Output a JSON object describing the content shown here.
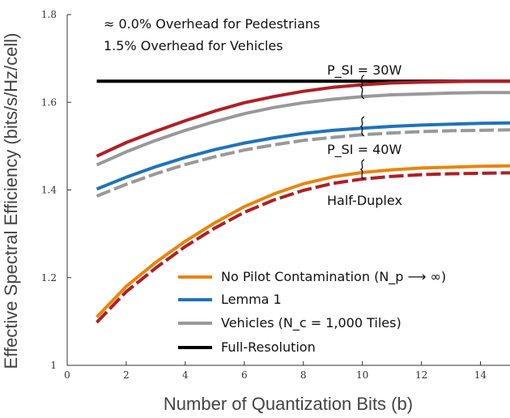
{
  "chart_data": {
    "type": "line",
    "xlabel": "Number of Quantization Bits (b)",
    "ylabel": "Effective Spectral Efficiency (bits/s/Hz/cell)",
    "xlim": [
      0,
      15
    ],
    "ylim": [
      1.0,
      1.8
    ],
    "xticks": [
      0,
      2,
      4,
      6,
      8,
      10,
      12,
      14
    ],
    "yticks": [
      1.0,
      1.2,
      1.4,
      1.6,
      1.8
    ],
    "ytick_labels": [
      "1",
      "1.2",
      "1.4",
      "1.6",
      "1.8"
    ],
    "annotations": {
      "overhead_pedestrians": "≈ 0.0% Overhead for Pedestrians",
      "overhead_vehicles": "1.5% Overhead for Vehicles",
      "psi_30": "P_SI = 30W",
      "psi_40": "P_SI = 40W",
      "half_duplex": "Half-Duplex"
    },
    "legend": [
      {
        "label": "No Pilot Contamination (N_p ⟶ ∞)",
        "color": "#e8860c"
      },
      {
        "label": "Lemma 1",
        "color": "#1f74b9"
      },
      {
        "label": "Vehicles (N_c = 1,000 Tiles)",
        "color": "#999999"
      },
      {
        "label": "Full-Resolution",
        "color": "#000000"
      }
    ],
    "series": [
      {
        "name": "Full-Resolution",
        "color": "#000000",
        "dash": false,
        "x": [
          1,
          15
        ],
        "y": [
          1.648,
          1.648
        ]
      },
      {
        "name": "P_SI=30W No Pilot Contamination",
        "color": "#b01f24",
        "dash": false,
        "x": [
          1,
          2,
          3,
          4,
          5,
          6,
          7,
          8,
          9,
          10,
          11,
          12,
          13,
          14,
          15
        ],
        "y": [
          1.477,
          1.508,
          1.534,
          1.558,
          1.58,
          1.599,
          1.613,
          1.625,
          1.634,
          1.64,
          1.644,
          1.646,
          1.647,
          1.648,
          1.648
        ]
      },
      {
        "name": "P_SI=30W Vehicles",
        "color": "#999999",
        "dash": false,
        "x": [
          1,
          2,
          3,
          4,
          5,
          6,
          7,
          8,
          9,
          10,
          11,
          12,
          13,
          14,
          15
        ],
        "y": [
          1.457,
          1.487,
          1.513,
          1.536,
          1.556,
          1.574,
          1.588,
          1.599,
          1.607,
          1.613,
          1.617,
          1.619,
          1.621,
          1.622,
          1.622
        ]
      },
      {
        "name": "P_SI=40W Lemma 1",
        "color": "#1f74b9",
        "dash": false,
        "x": [
          1,
          2,
          3,
          4,
          5,
          6,
          7,
          8,
          9,
          10,
          11,
          12,
          13,
          14,
          15
        ],
        "y": [
          1.402,
          1.429,
          1.453,
          1.474,
          1.492,
          1.507,
          1.519,
          1.529,
          1.536,
          1.541,
          1.545,
          1.548,
          1.55,
          1.552,
          1.553
        ]
      },
      {
        "name": "P_SI=40W Vehicles",
        "color": "#999999",
        "dash": true,
        "x": [
          1,
          2,
          3,
          4,
          5,
          6,
          7,
          8,
          9,
          10,
          11,
          12,
          13,
          14,
          15
        ],
        "y": [
          1.386,
          1.413,
          1.437,
          1.458,
          1.476,
          1.491,
          1.503,
          1.513,
          1.52,
          1.526,
          1.53,
          1.533,
          1.535,
          1.536,
          1.537
        ]
      },
      {
        "name": "Half-Duplex No Pilot Contamination",
        "color": "#e8860c",
        "dash": false,
        "x": [
          1,
          2,
          3,
          4,
          5,
          6,
          7,
          8,
          9,
          10,
          11,
          12,
          13,
          14,
          15
        ],
        "y": [
          1.11,
          1.18,
          1.235,
          1.283,
          1.325,
          1.362,
          1.391,
          1.414,
          1.43,
          1.44,
          1.446,
          1.45,
          1.452,
          1.454,
          1.455
        ]
      },
      {
        "name": "Half-Duplex Vehicles",
        "color": "#b01f24",
        "dash": true,
        "x": [
          1,
          2,
          3,
          4,
          5,
          6,
          7,
          8,
          9,
          10,
          11,
          12,
          13,
          14,
          15
        ],
        "y": [
          1.098,
          1.168,
          1.222,
          1.271,
          1.313,
          1.349,
          1.377,
          1.399,
          1.415,
          1.425,
          1.431,
          1.435,
          1.437,
          1.438,
          1.439
        ]
      }
    ]
  }
}
